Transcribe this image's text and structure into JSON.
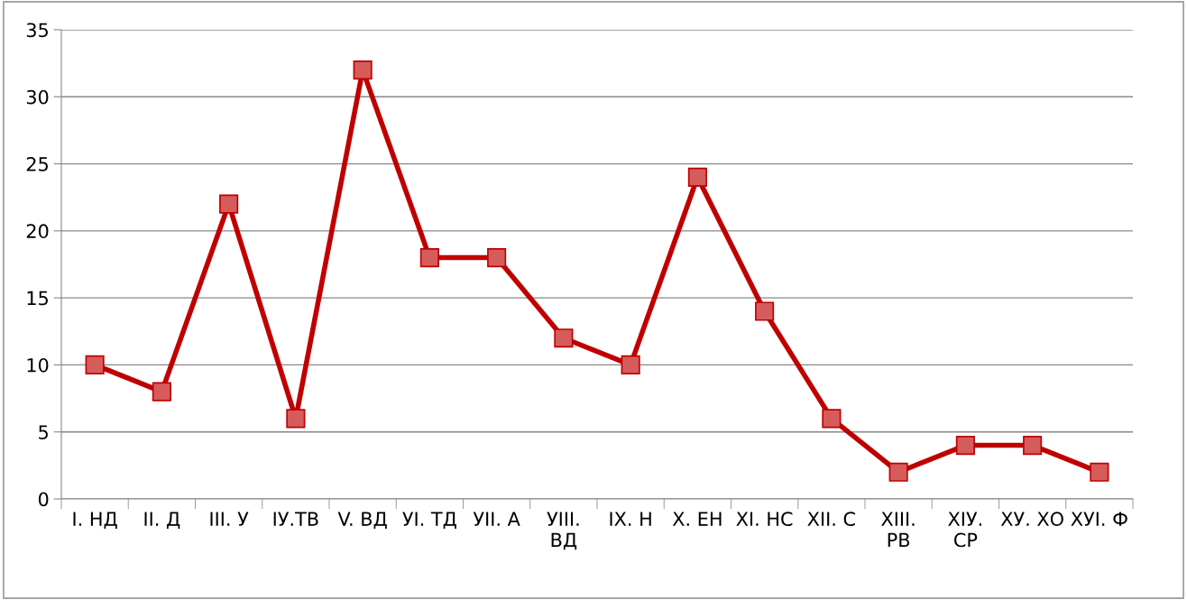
{
  "chart_data": {
    "type": "line",
    "categories": [
      "I. НД",
      "II. Д",
      "III. У",
      "IУ.ТВ",
      "V. ВД",
      "УI. ТД",
      "УII. А",
      "УIII. ВД",
      "IX. Н",
      "X. ЕН",
      "XI. НС",
      "XII. С",
      "XIII. РВ",
      "XIУ. СР",
      "XУ. ХО",
      "XУI. Ф"
    ],
    "series": [
      {
        "color": "#c00000",
        "values": [
          10,
          8,
          22,
          6,
          32,
          18,
          18,
          12,
          10,
          24,
          14,
          6,
          2,
          4,
          4,
          2
        ]
      }
    ],
    "ylim": [
      0,
      35
    ],
    "yticks": [
      0,
      5,
      10,
      15,
      20,
      25,
      30,
      35
    ],
    "grid": "y",
    "legend": false,
    "marker": "square",
    "line_style": "solid"
  }
}
